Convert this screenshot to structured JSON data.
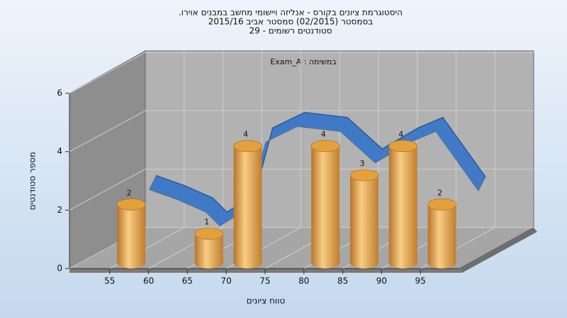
{
  "chart_data": {
    "type": "histogram",
    "title_lines": [
      "היסטוגרמת ציונים בקורס - אנליזה ויישומי מחשב במבנים אוירו.",
      "בסמסטר (02/2015) סמסטר אביב 2015/16",
      "סטודנטים רשומים - 29"
    ],
    "annotation": "במשימה : Exam_A",
    "xlabel": "טווח ציונים",
    "ylabel": "מספר סטודנטים",
    "bins": [
      50,
      55,
      60,
      65,
      70,
      75,
      80,
      85,
      90,
      95,
      100
    ],
    "values": [
      0,
      2,
      0,
      1,
      4,
      0,
      4,
      3,
      4,
      2
    ],
    "color": "#e3a13e",
    "xlim": [
      50,
      100
    ],
    "xticks": [
      55,
      60,
      65,
      70,
      75,
      80,
      85,
      90,
      95
    ],
    "ylim": [
      0,
      6
    ],
    "yticks": [
      0,
      2,
      4,
      6
    ],
    "grid": true,
    "trend": {
      "color": "#3a78c8",
      "x": [
        51.4,
        55,
        58.7,
        60.5,
        64.1,
        66.4,
        70.5,
        76,
        80.5,
        85.1,
        88.3,
        93.8
      ],
      "values": [
        1.78,
        1.44,
        1.01,
        0.53,
        1.13,
        3.41,
        3.94,
        3.77,
        2.69,
        3.41,
        3.77,
        1.73
      ]
    }
  }
}
